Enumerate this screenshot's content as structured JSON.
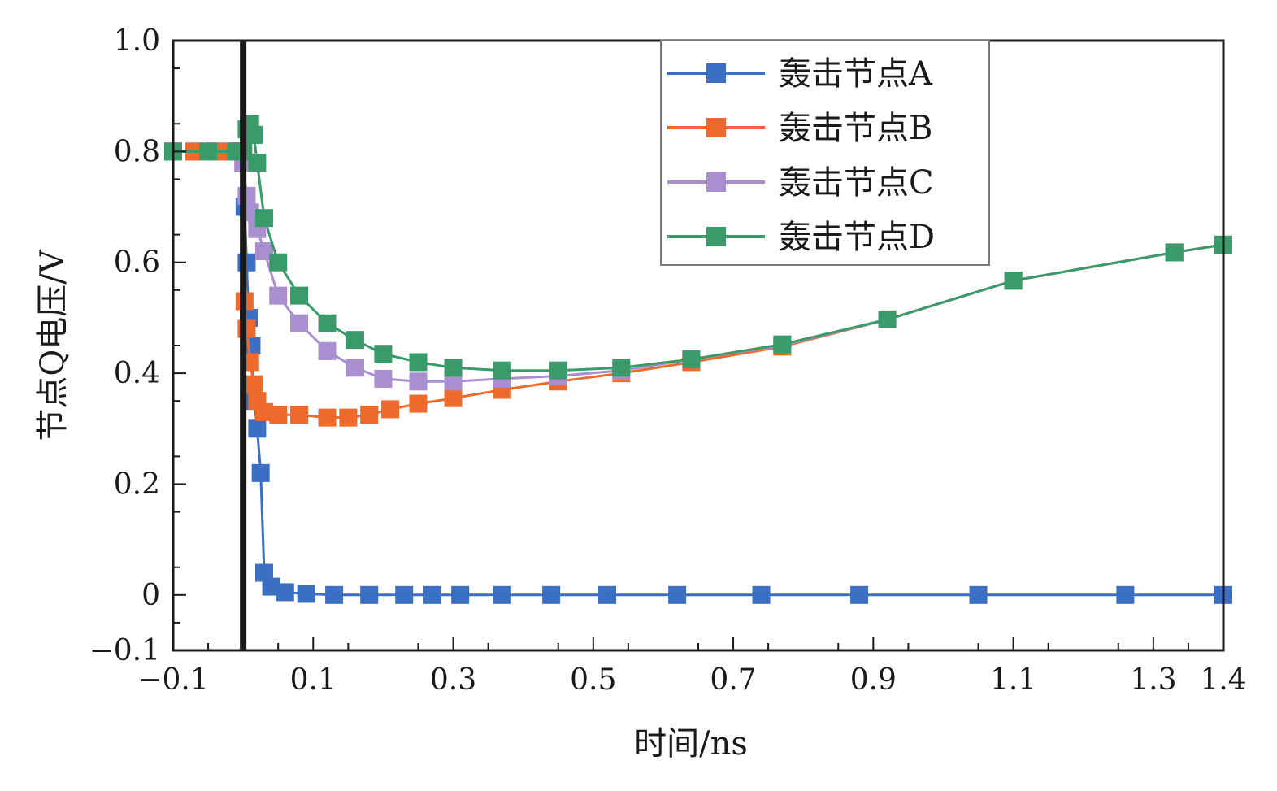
{
  "chart_data": {
    "type": "line",
    "title": "",
    "xlabel": "时间/ns",
    "ylabel": "节点Q电压/V",
    "xlim": [
      -0.1,
      1.4
    ],
    "ylim": [
      -0.1,
      1.0
    ],
    "xticks": [
      -0.1,
      0.1,
      0.3,
      0.5,
      0.7,
      0.9,
      1.1,
      1.3,
      1.4
    ],
    "xtick_labels": [
      "−0.1",
      "0.1",
      "0.3",
      "0.5",
      "0.7",
      "0.9",
      "1.1",
      "1.3",
      "1.4"
    ],
    "yticks": [
      -0.1,
      0,
      0.2,
      0.4,
      0.6,
      0.8,
      1.0
    ],
    "ytick_labels": [
      "−0.1",
      "0",
      "0.2",
      "0.4",
      "0.6",
      "0.8",
      "1.0"
    ],
    "strike_time": 0.0,
    "legend_position": "top-right",
    "series": [
      {
        "name": "轰击节点A",
        "color": "#3a6fc4",
        "x": [
          -0.1,
          -0.07,
          -0.04,
          -0.015,
          -0.005,
          0.0,
          0.002,
          0.005,
          0.008,
          0.012,
          0.016,
          0.02,
          0.025,
          0.03,
          0.04,
          0.06,
          0.09,
          0.13,
          0.18,
          0.23,
          0.27,
          0.31,
          0.37,
          0.44,
          0.52,
          0.62,
          0.74,
          0.88,
          1.05,
          1.26,
          1.4
        ],
        "y": [
          0.8,
          0.8,
          0.8,
          0.8,
          0.8,
          0.8,
          0.7,
          0.6,
          0.5,
          0.45,
          0.35,
          0.3,
          0.22,
          0.04,
          0.015,
          0.005,
          0.002,
          0.0,
          0.0,
          0.0,
          0.0,
          0.0,
          0.0,
          0.0,
          0.0,
          0.0,
          0.0,
          0.0,
          0.0,
          0.0,
          0.0
        ]
      },
      {
        "name": "轰击节点B",
        "color": "#ee6a2c",
        "x": [
          -0.1,
          -0.07,
          -0.04,
          -0.015,
          -0.005,
          0.0,
          0.002,
          0.005,
          0.01,
          0.015,
          0.02,
          0.03,
          0.05,
          0.08,
          0.12,
          0.15,
          0.18,
          0.21,
          0.25,
          0.3,
          0.37,
          0.45,
          0.54,
          0.64,
          0.77,
          0.92,
          1.1,
          1.33,
          1.4
        ],
        "y": [
          0.8,
          0.8,
          0.8,
          0.8,
          0.8,
          0.8,
          0.53,
          0.48,
          0.42,
          0.38,
          0.35,
          0.33,
          0.325,
          0.325,
          0.32,
          0.32,
          0.325,
          0.335,
          0.345,
          0.355,
          0.37,
          0.385,
          0.4,
          0.42,
          0.448,
          0.497,
          0.567,
          0.618,
          0.632
        ]
      },
      {
        "name": "轰击节点C",
        "color": "#a98fd0",
        "x": [
          -0.1,
          -0.05,
          -0.01,
          0.0,
          0.005,
          0.01,
          0.02,
          0.03,
          0.05,
          0.08,
          0.12,
          0.16,
          0.2,
          0.25,
          0.3,
          0.37,
          0.45,
          0.54,
          0.64,
          0.77,
          0.92,
          1.1,
          1.33,
          1.4
        ],
        "y": [
          0.8,
          0.8,
          0.8,
          0.78,
          0.72,
          0.69,
          0.66,
          0.62,
          0.54,
          0.49,
          0.44,
          0.41,
          0.39,
          0.385,
          0.385,
          0.39,
          0.395,
          0.405,
          0.425,
          0.45,
          0.497,
          0.567,
          0.618,
          0.632
        ]
      },
      {
        "name": "轰击节点D",
        "color": "#3a9a6a",
        "x": [
          -0.1,
          -0.05,
          -0.01,
          0.0,
          0.005,
          0.01,
          0.015,
          0.02,
          0.03,
          0.05,
          0.08,
          0.12,
          0.16,
          0.2,
          0.25,
          0.3,
          0.37,
          0.45,
          0.54,
          0.64,
          0.77,
          0.92,
          1.1,
          1.33,
          1.4
        ],
        "y": [
          0.8,
          0.8,
          0.8,
          0.8,
          0.84,
          0.85,
          0.83,
          0.78,
          0.68,
          0.6,
          0.54,
          0.49,
          0.46,
          0.435,
          0.42,
          0.41,
          0.405,
          0.405,
          0.41,
          0.425,
          0.452,
          0.497,
          0.567,
          0.618,
          0.632
        ]
      }
    ]
  }
}
